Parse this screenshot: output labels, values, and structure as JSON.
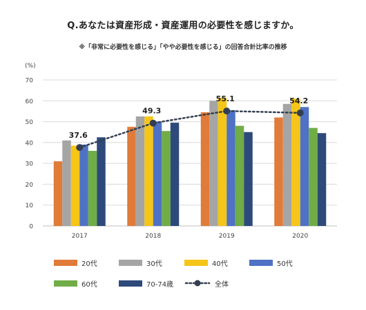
{
  "title": "Q.あなたは資産形成・資産運用の必要性を感じますか。",
  "subtitle": "※「非常に必要性を感じる」「やや必要性を感じる」の回答合計比率の推移",
  "unit_label": "(%)",
  "chart_data": {
    "type": "bar",
    "categories": [
      "2017",
      "2018",
      "2019",
      "2020"
    ],
    "ylim": [
      0,
      70
    ],
    "yticks": [
      0,
      10,
      20,
      30,
      40,
      50,
      60,
      70
    ],
    "grid": true,
    "legend_position": "bottom",
    "series": [
      {
        "name": "20代",
        "color": "#E07B39",
        "values": [
          31,
          47.5,
          54.5,
          52
        ]
      },
      {
        "name": "30代",
        "color": "#A5A5A5",
        "values": [
          41,
          52.5,
          60,
          58.5
        ]
      },
      {
        "name": "40代",
        "color": "#F5C518",
        "values": [
          38.5,
          52.5,
          61.5,
          61
        ]
      },
      {
        "name": "50代",
        "color": "#4F72C4",
        "values": [
          39,
          50,
          55.5,
          57
        ]
      },
      {
        "name": "60代",
        "color": "#70AD47",
        "values": [
          36,
          45.5,
          48,
          47
        ]
      },
      {
        "name": "70-74歳",
        "color": "#2E4A7A",
        "values": [
          42.5,
          49.5,
          45,
          44.5
        ]
      }
    ],
    "overall": {
      "name": "全体",
      "color": "#333F50",
      "style": "dotted-line-with-markers",
      "values": [
        37.6,
        49.3,
        55.1,
        54.2
      ],
      "labels": [
        "37.6",
        "49.3",
        "55.1",
        "54.2"
      ]
    }
  }
}
